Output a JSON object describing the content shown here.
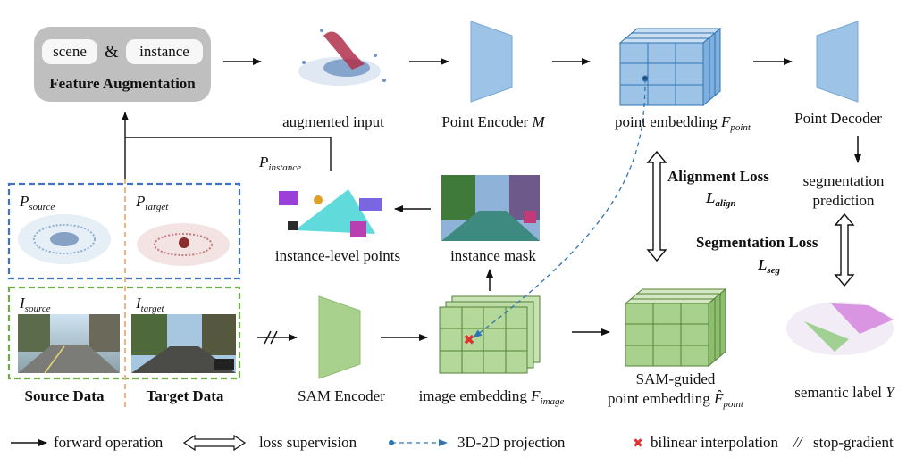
{
  "feature_augmentation": {
    "scene": "scene",
    "and": "&",
    "instance": "instance",
    "title": "Feature Augmentation"
  },
  "labels": {
    "augmented_input": "augmented input",
    "point_encoder": "Point Encoder",
    "point_encoder_sym": "M",
    "point_embedding": "point embedding",
    "point_embedding_sym": "F",
    "point_embedding_sub": "point",
    "point_decoder": "Point Decoder",
    "segmentation_prediction_1": "segmentation",
    "segmentation_prediction_2": "prediction",
    "p_instance_sym": "P",
    "p_instance_sub": "instance",
    "instance_level_points": "instance-level points",
    "instance_mask": "instance mask",
    "alignment_loss": "Alignment Loss",
    "l_align_sym": "L",
    "l_align_sub": "align",
    "segmentation_loss": "Segmentation Loss",
    "l_seg_sym": "L",
    "l_seg_sub": "seg",
    "p_source_sym": "P",
    "p_source_sub": "source",
    "p_target_sym": "P",
    "p_target_sub": "target",
    "i_source_sym": "I",
    "i_source_sub": "source",
    "i_target_sym": "I",
    "i_target_sub": "target",
    "source_data": "Source Data",
    "target_data": "Target Data",
    "sam_encoder": "SAM Encoder",
    "image_embedding": "image embedding",
    "image_embedding_sym": "F",
    "image_embedding_sub": "image",
    "sam_guided_1": "SAM-guided",
    "sam_guided_2": "point embedding",
    "sam_guided_sym": "F̂",
    "sam_guided_sub": "point",
    "semantic_label": "semantic label",
    "semantic_label_sym": "Y"
  },
  "legend": {
    "forward": "forward operation",
    "loss": "loss supervision",
    "projection": "3D-2D projection",
    "bilinear": "bilinear interpolation",
    "stop_symbol": "//",
    "stop": "stop-gradient"
  },
  "colors": {
    "blue_cube": "#9dc3e6",
    "blue_cube_edge": "#2e75b6",
    "green_cube": "#a9d18e",
    "green_cube_edge": "#548235",
    "encoder_blue": "#9dc3e6",
    "encoder_green": "#a9d18e",
    "source_box": "#4472c4",
    "target_box": "#70ad47",
    "divider": "#f4b183",
    "projection": "#2e75b6",
    "interp_mark": "#e03030",
    "aug_box": "#bfbfbf"
  }
}
